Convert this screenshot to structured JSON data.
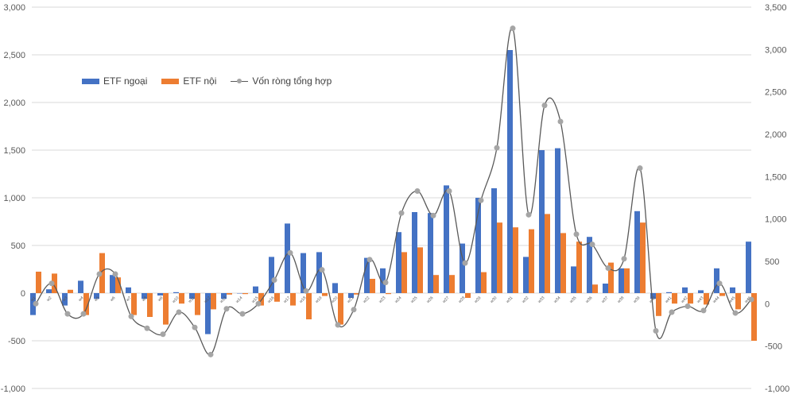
{
  "chart_data": {
    "type": "bar",
    "title": "",
    "xlabel": "",
    "ylabel": "",
    "ylim": [
      -1000,
      3000
    ],
    "ylim_right": [
      -1000,
      3500
    ],
    "yticks_left": [
      "3,000",
      "2,500",
      "2,000",
      "1,500",
      "1,000",
      "500",
      "0",
      "-500",
      "-1,000"
    ],
    "yticks_right": [
      "3,500",
      "3,000",
      "2,500",
      "2,000",
      "1,500",
      "1,000",
      "500",
      "0",
      "-500",
      "-1,000"
    ],
    "grid": true,
    "legend_position": "top-left",
    "categories": [
      "w1",
      "w2",
      "w3",
      "w4",
      "w5",
      "w6",
      "w7",
      "w8",
      "w9",
      "w10",
      "w11",
      "w12",
      "w13",
      "w14",
      "w15",
      "w16",
      "w17",
      "w18",
      "w19",
      "w20",
      "w21",
      "w22",
      "w23",
      "w24",
      "w25",
      "w26",
      "w27",
      "w28",
      "w29",
      "w30",
      "w31",
      "w32",
      "w33",
      "w34",
      "w35",
      "w36",
      "w37",
      "w38",
      "w39",
      "w40",
      "w41",
      "w42",
      "w43",
      "w44",
      "w45",
      "w46"
    ],
    "series": [
      {
        "name": "ETF ngoại",
        "axis": "left",
        "kind": "bar",
        "color": "#4472c4",
        "values": [
          -230,
          40,
          -130,
          130,
          -60,
          190,
          60,
          -60,
          -25,
          10,
          -60,
          -430,
          -60,
          0,
          70,
          380,
          730,
          420,
          430,
          105,
          -50,
          370,
          260,
          640,
          850,
          840,
          1130,
          520,
          1000,
          1100,
          2550,
          380,
          1500,
          1520,
          280,
          590,
          100,
          260,
          860,
          -60,
          10,
          60,
          30,
          260,
          60,
          540
        ]
      },
      {
        "name": "ETF nội",
        "axis": "left",
        "kind": "bar",
        "color": "#ed7d31",
        "values": [
          225,
          205,
          35,
          -230,
          420,
          165,
          -230,
          -250,
          -330,
          -110,
          -230,
          -170,
          -15,
          -10,
          -130,
          -90,
          -130,
          -275,
          -30,
          -330,
          -15,
          150,
          -10,
          430,
          480,
          190,
          190,
          -50,
          220,
          740,
          690,
          670,
          830,
          630,
          540,
          90,
          320,
          260,
          740,
          -240,
          -110,
          -110,
          -120,
          -30,
          -170,
          -500
        ]
      },
      {
        "name": "Vốn ròng tổng hợp",
        "axis": "right",
        "kind": "line",
        "color": "#595959",
        "marker_color": "#a5a5a5",
        "values": [
          0,
          240,
          -120,
          -120,
          350,
          350,
          -150,
          -290,
          -360,
          -100,
          -280,
          -600,
          -60,
          -120,
          0,
          280,
          600,
          150,
          400,
          -250,
          -70,
          520,
          250,
          1070,
          1330,
          1040,
          1330,
          480,
          1220,
          1840,
          3250,
          1050,
          2340,
          2150,
          820,
          700,
          420,
          530,
          1600,
          -320,
          -100,
          -30,
          -80,
          240,
          -110,
          50
        ]
      }
    ]
  },
  "legend": {
    "items": [
      {
        "label": "ETF ngoại",
        "color": "#4472c4"
      },
      {
        "label": "ETF nội",
        "color": "#ed7d31"
      },
      {
        "label": "Vốn ròng tổng hợp",
        "color": "#595959"
      }
    ]
  }
}
